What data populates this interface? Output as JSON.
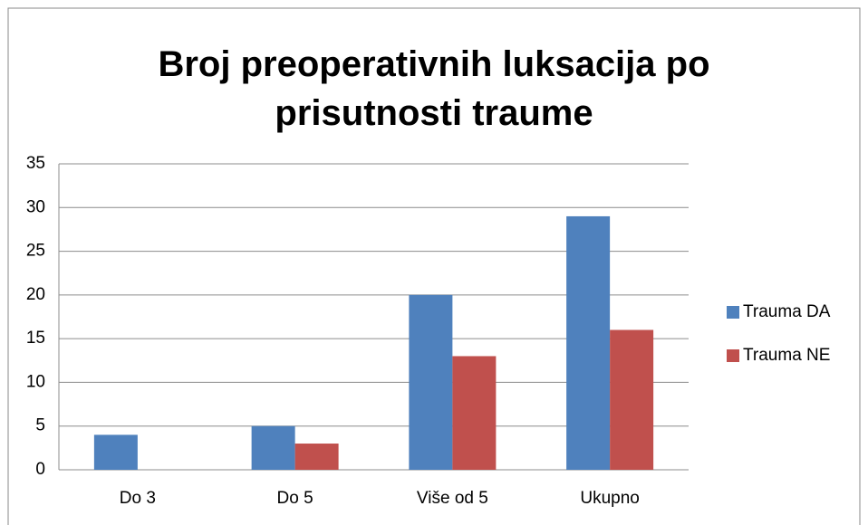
{
  "chart_data": {
    "type": "bar",
    "title": "Broj preoperativnih luksacija po prisutnosti traume",
    "categories": [
      "Do 3",
      "Do 5",
      "Više od 5",
      "Ukupno"
    ],
    "series": [
      {
        "name": "Trauma DA",
        "color": "#4f81bd",
        "values": [
          4,
          5,
          20,
          29
        ]
      },
      {
        "name": "Trauma NE",
        "color": "#c0504d",
        "values": [
          0,
          3,
          13,
          16
        ]
      }
    ],
    "ylim": [
      0,
      35
    ],
    "yticks": [
      0,
      5,
      10,
      15,
      20,
      25,
      30,
      35
    ],
    "grid": true,
    "legend": "right"
  }
}
